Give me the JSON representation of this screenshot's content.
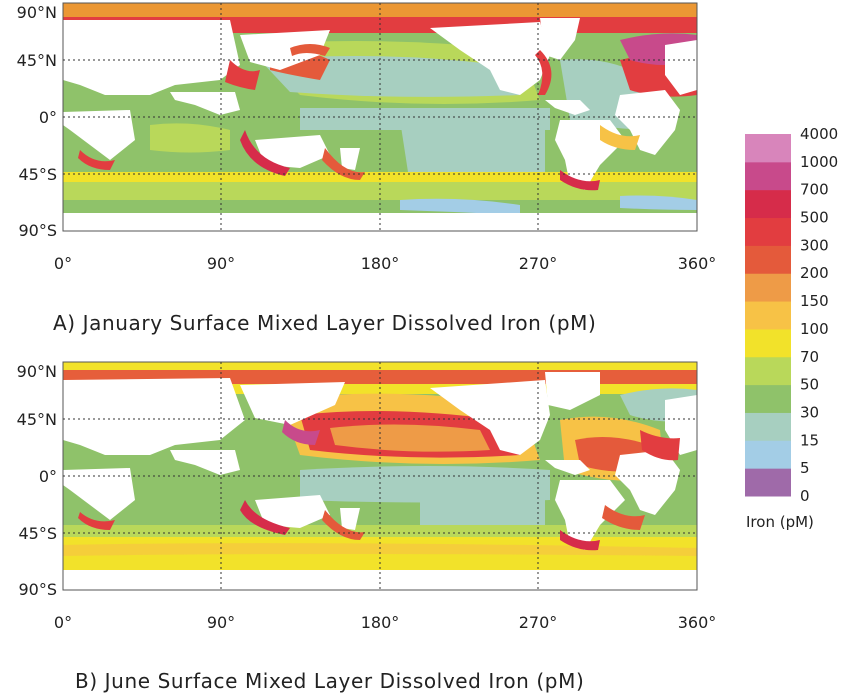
{
  "colors": {
    "land": "#ffffff",
    "frame": "#555555",
    "grid": "#333333",
    "scale": [
      "#9f6aa9",
      "#a3cde6",
      "#a7cfc0",
      "#8fc26a",
      "#b9d85a",
      "#f2e22a",
      "#f7c246",
      "#ee9b47",
      "#e45a3b",
      "#e23d40",
      "#d62c4a",
      "#c84a8b",
      "#d885bb"
    ]
  },
  "legend": {
    "labels": [
      "0",
      "5",
      "15",
      "30",
      "50",
      "70",
      "100",
      "150",
      "200",
      "300",
      "500",
      "700",
      "1000",
      "4000"
    ],
    "title": "Iron (pM)"
  },
  "maps": [
    {
      "id": "january",
      "caption": "A) January Surface Mixed Layer Dissolved Iron (pM)",
      "lat_labels": [
        "90°N",
        "45°N",
        "0°",
        "45°S",
        "90°S"
      ],
      "lon_labels": [
        "0°",
        "90°",
        "180°",
        "270°",
        "360°"
      ]
    },
    {
      "id": "june",
      "caption": "B) June Surface Mixed Layer Dissolved Iron (pM)",
      "lat_labels": [
        "90°N",
        "45°N",
        "0°",
        "45°S",
        "90°S"
      ],
      "lon_labels": [
        "0°",
        "90°",
        "180°",
        "270°",
        "360°"
      ]
    }
  ]
}
